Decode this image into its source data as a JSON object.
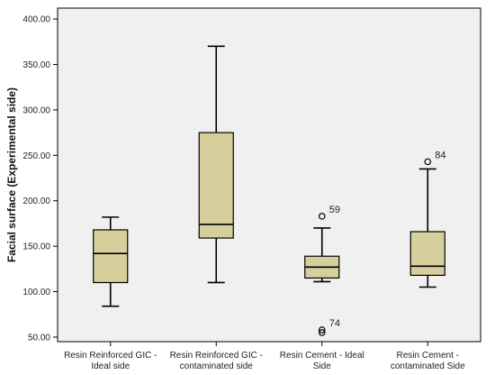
{
  "chart_data": {
    "type": "boxplot",
    "title": "",
    "xlabel": "",
    "ylabel": "Facial surface (Experimental side)",
    "ylim": [
      45,
      412
    ],
    "yticks": [
      "50.00",
      "100.00",
      "150.00",
      "200.00",
      "250.00",
      "300.00",
      "350.00",
      "400.00"
    ],
    "ytick_values": [
      50,
      100,
      150,
      200,
      250,
      300,
      350,
      400
    ],
    "grid": false,
    "colors": {
      "box_fill": "#d6cf9b",
      "plot_bg": "#f0f0f0",
      "stroke": "#000000"
    },
    "categories": [
      [
        "Resin Reinforced GIC -",
        "Ideal side"
      ],
      [
        "Resin Reinforced GIC -",
        "contaminated side"
      ],
      [
        "Resin Cement - Ideal",
        "Side"
      ],
      [
        "Resin Cement -",
        "contaminated Side"
      ]
    ],
    "boxes": [
      {
        "min": 84,
        "q1": 110,
        "median": 142,
        "q3": 168,
        "max": 182,
        "outliers": []
      },
      {
        "min": 110,
        "q1": 159,
        "median": 174,
        "q3": 275,
        "max": 370,
        "outliers": []
      },
      {
        "min": 111,
        "q1": 115,
        "median": 127,
        "q3": 139,
        "max": 170,
        "outliers": [
          {
            "value": 183,
            "label": "59"
          },
          {
            "value": 58,
            "label": "74"
          },
          {
            "value": 55,
            "label": ""
          }
        ]
      },
      {
        "min": 105,
        "q1": 118,
        "median": 128,
        "q3": 166,
        "max": 235,
        "outliers": [
          {
            "value": 243,
            "label": "84"
          }
        ]
      }
    ]
  }
}
